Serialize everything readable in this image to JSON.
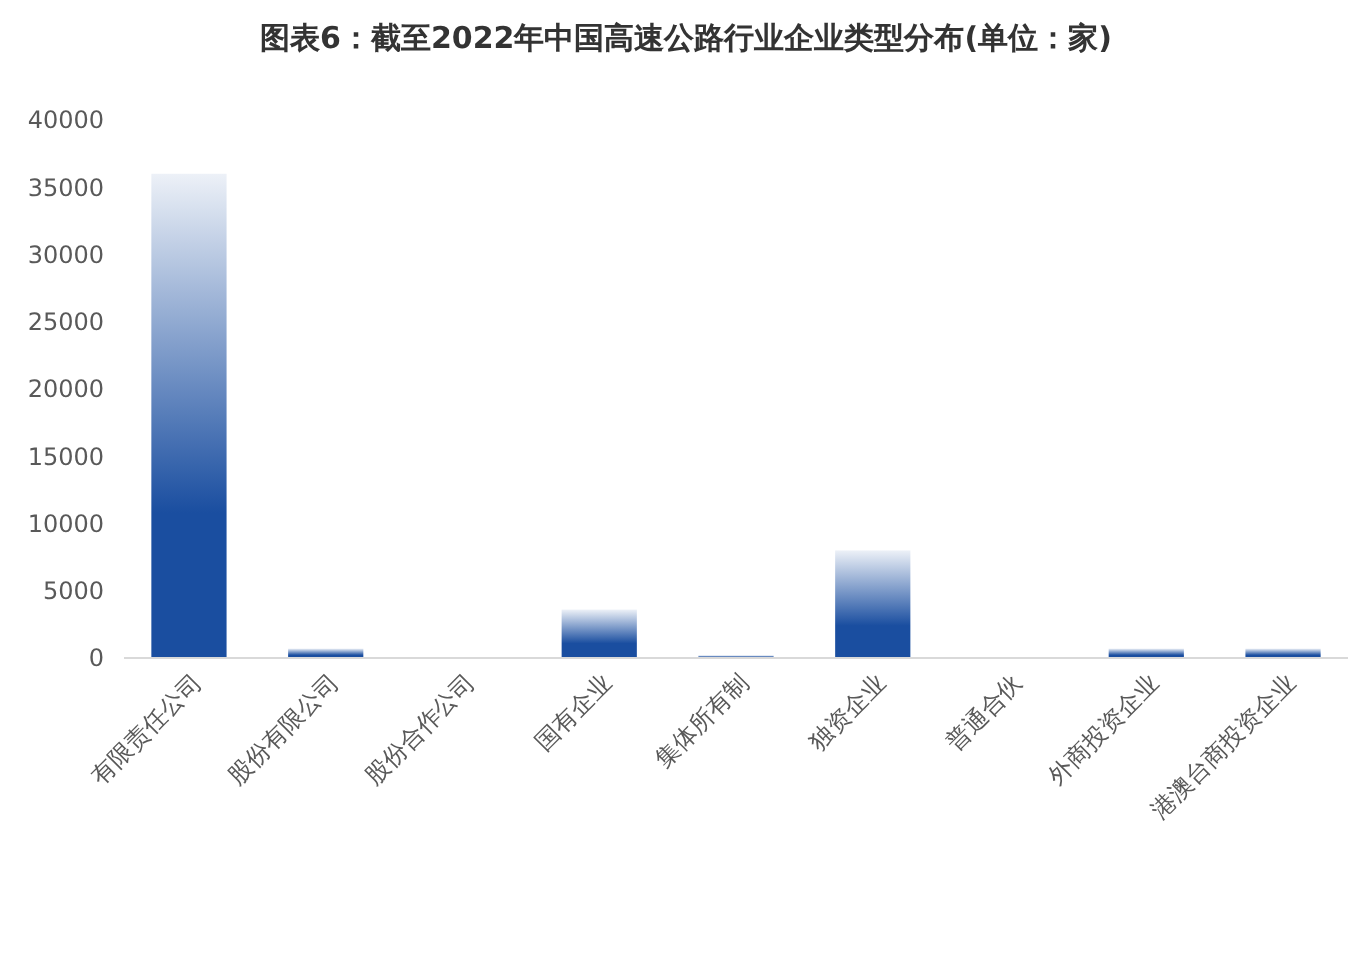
{
  "chart_data": {
    "type": "bar",
    "title": "图表6：截至2022年中国高速公路行业企业类型分布(单位：家)",
    "categories": [
      "有限责任公司",
      "股份有限公司",
      "股份合作公司",
      "国有企业",
      "集体所有制",
      "独资企业",
      "普通合伙",
      "外商投资企业",
      "港澳台商投资企业"
    ],
    "values": [
      36000,
      700,
      0,
      3600,
      200,
      8000,
      0,
      700,
      700
    ],
    "color": "#1a4ea0",
    "ylim": [
      0,
      40000
    ],
    "yticks": [
      0,
      5000,
      10000,
      15000,
      20000,
      25000,
      30000,
      35000,
      40000
    ],
    "grid": false
  }
}
